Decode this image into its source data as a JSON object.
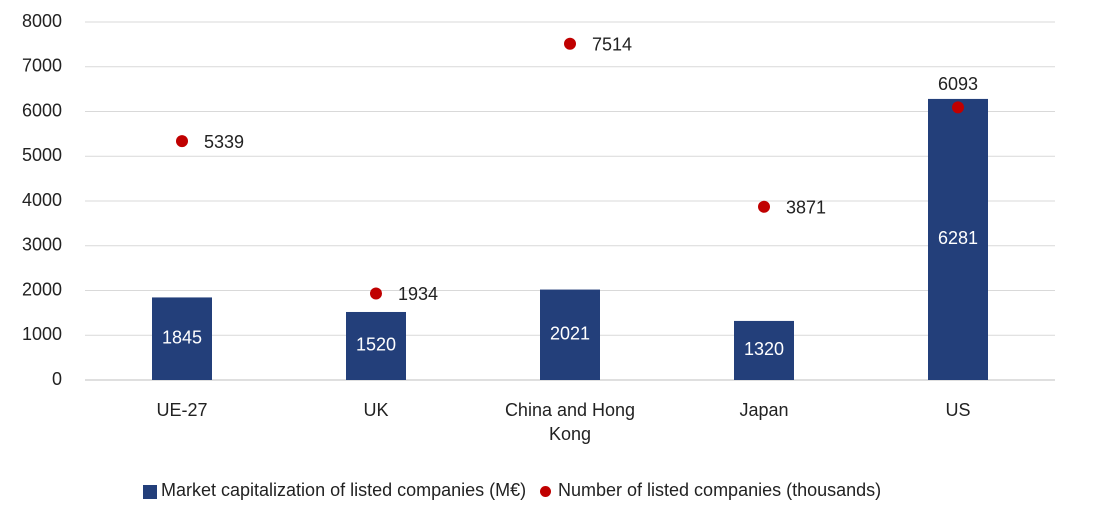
{
  "chart_data": {
    "type": "bar",
    "categories": [
      "UE-27",
      "UK",
      "China and Hong Kong",
      "Japan",
      "US"
    ],
    "series": [
      {
        "name": "Market capitalization of listed companies (M€)",
        "type": "bar",
        "color": "#233f7a",
        "values": [
          1845,
          1520,
          2021,
          1320,
          6281
        ]
      },
      {
        "name": "Number of listed companies (thousands)",
        "type": "scatter",
        "color": "#c00000",
        "values": [
          5339,
          1934,
          7514,
          3871,
          6093
        ]
      }
    ],
    "ylim": [
      0,
      8000
    ],
    "yticks": [
      0,
      1000,
      2000,
      3000,
      4000,
      5000,
      6000,
      7000,
      8000
    ],
    "grid": true
  }
}
